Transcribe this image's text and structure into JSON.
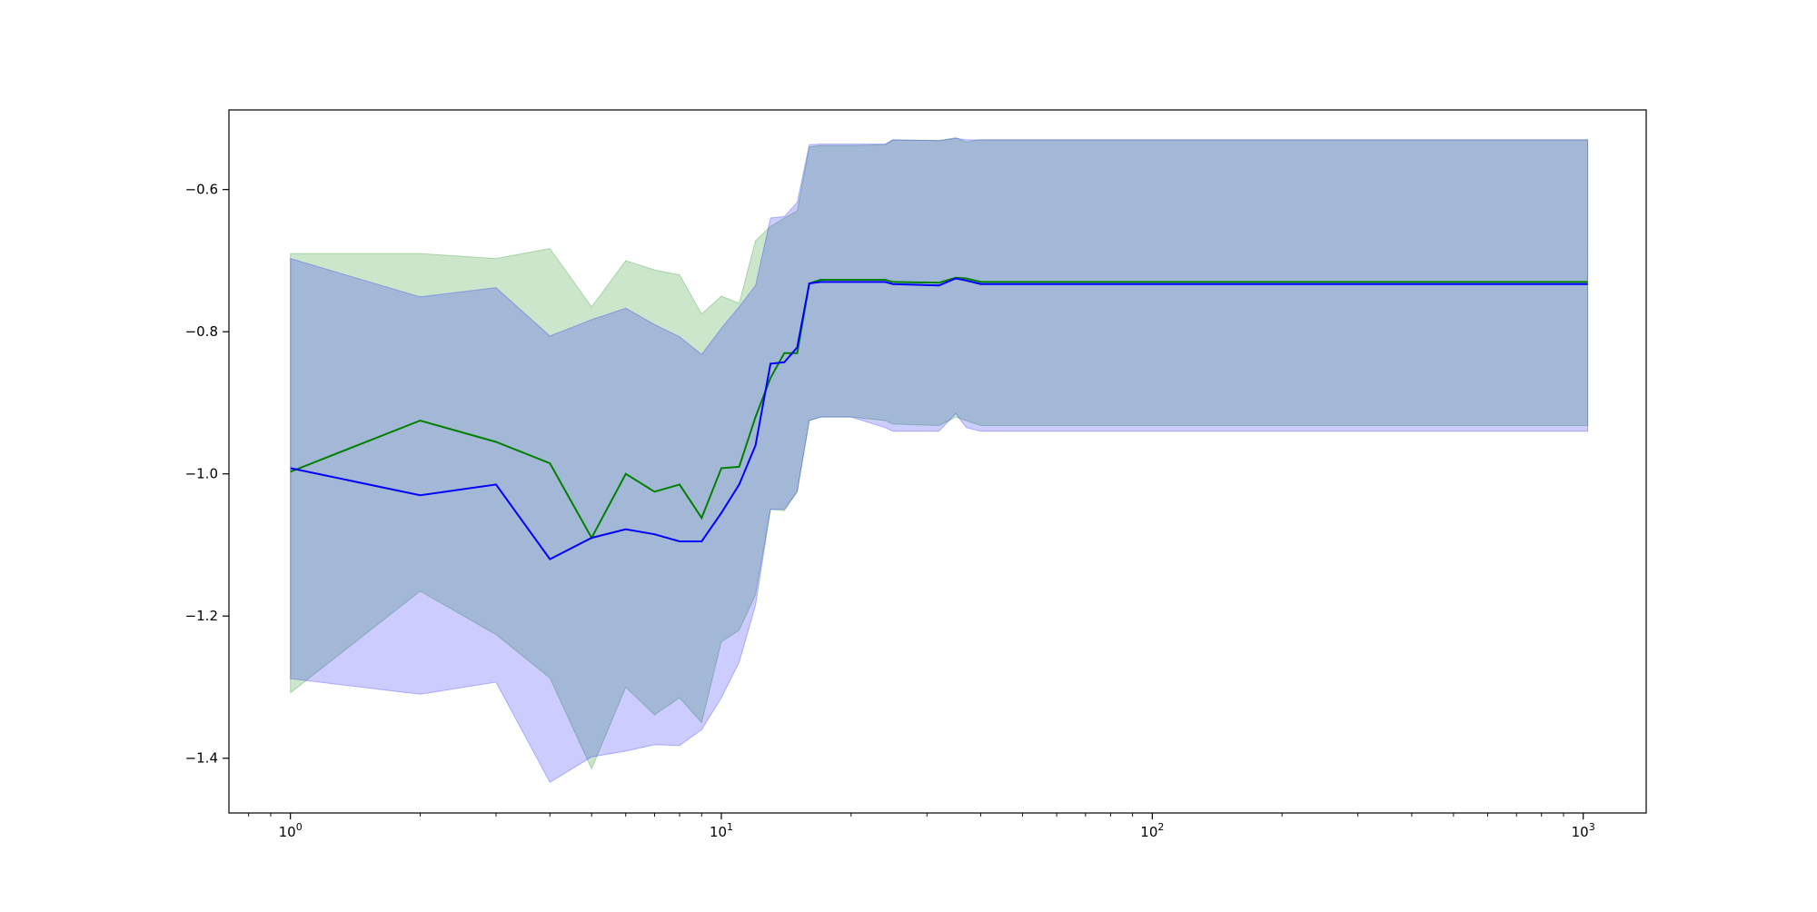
{
  "chart_data": {
    "type": "line",
    "title": "",
    "xlabel": "",
    "ylabel": "",
    "xscale": "log",
    "xlim": [
      0.72,
      1400
    ],
    "ylim": [
      -1.477,
      -0.488
    ],
    "grid": false,
    "legend": "none",
    "x_ticks": [
      {
        "value": 1,
        "base": "10",
        "exp": "0"
      },
      {
        "value": 10,
        "base": "10",
        "exp": "1"
      },
      {
        "value": 100,
        "base": "10",
        "exp": "2"
      },
      {
        "value": 1000,
        "base": "10",
        "exp": "3"
      }
    ],
    "y_ticks": [
      {
        "value": -1.4,
        "label": "−1.4"
      },
      {
        "value": -1.2,
        "label": "−1.2"
      },
      {
        "value": -1.0,
        "label": "−1.0"
      },
      {
        "value": -0.8,
        "label": "−0.8"
      },
      {
        "value": -0.6,
        "label": "−0.6"
      }
    ],
    "x": [
      1,
      2,
      3,
      4,
      5,
      6,
      7,
      8,
      9,
      10,
      11,
      12,
      13,
      14,
      15,
      16,
      17,
      20,
      24,
      25,
      32,
      35,
      37,
      40,
      1024
    ],
    "series": [
      {
        "color": "#008000",
        "band_color": "#008000",
        "band_opacity": 0.2,
        "values": [
          -0.997,
          -0.925,
          -0.955,
          -0.985,
          -1.09,
          -1.0,
          -1.025,
          -1.015,
          -1.062,
          -0.992,
          -0.99,
          -0.92,
          -0.865,
          -0.83,
          -0.83,
          -0.732,
          -0.727,
          -0.727,
          -0.727,
          -0.73,
          -0.731,
          -0.724,
          -0.725,
          -0.73,
          -0.73
        ],
        "upper": [
          -0.69,
          -0.69,
          -0.697,
          -0.683,
          -0.765,
          -0.7,
          -0.713,
          -0.72,
          -0.775,
          -0.75,
          -0.76,
          -0.672,
          -0.652,
          -0.64,
          -0.63,
          -0.54,
          -0.538,
          -0.538,
          -0.537,
          -0.53,
          -0.531,
          -0.527,
          -0.533,
          -0.53,
          -0.53
        ],
        "lower": [
          -1.308,
          -1.165,
          -1.226,
          -1.287,
          -1.415,
          -1.3,
          -1.339,
          -1.315,
          -1.35,
          -1.236,
          -1.22,
          -1.17,
          -1.05,
          -1.052,
          -1.025,
          -0.925,
          -0.92,
          -0.92,
          -0.925,
          -0.93,
          -0.932,
          -0.92,
          -0.925,
          -0.932,
          -0.932
        ]
      },
      {
        "color": "#0000ff",
        "band_color": "#0000ff",
        "band_opacity": 0.2,
        "values": [
          -0.992,
          -1.03,
          -1.015,
          -1.12,
          -1.09,
          -1.078,
          -1.085,
          -1.095,
          -1.095,
          -1.055,
          -1.015,
          -0.96,
          -0.845,
          -0.843,
          -0.822,
          -0.732,
          -0.73,
          -0.73,
          -0.73,
          -0.733,
          -0.735,
          -0.725,
          -0.728,
          -0.733,
          -0.733
        ],
        "upper": [
          -0.697,
          -0.751,
          -0.738,
          -0.806,
          -0.783,
          -0.767,
          -0.79,
          -0.807,
          -0.832,
          -0.795,
          -0.765,
          -0.735,
          -0.64,
          -0.638,
          -0.618,
          -0.537,
          -0.536,
          -0.536,
          -0.536,
          -0.53,
          -0.531,
          -0.528,
          -0.53,
          -0.53,
          -0.53
        ],
        "lower": [
          -1.288,
          -1.31,
          -1.293,
          -1.434,
          -1.398,
          -1.39,
          -1.381,
          -1.382,
          -1.36,
          -1.315,
          -1.265,
          -1.185,
          -1.05,
          -1.05,
          -1.025,
          -0.925,
          -0.92,
          -0.92,
          -0.935,
          -0.94,
          -0.94,
          -0.915,
          -0.935,
          -0.94,
          -0.94
        ]
      }
    ]
  }
}
